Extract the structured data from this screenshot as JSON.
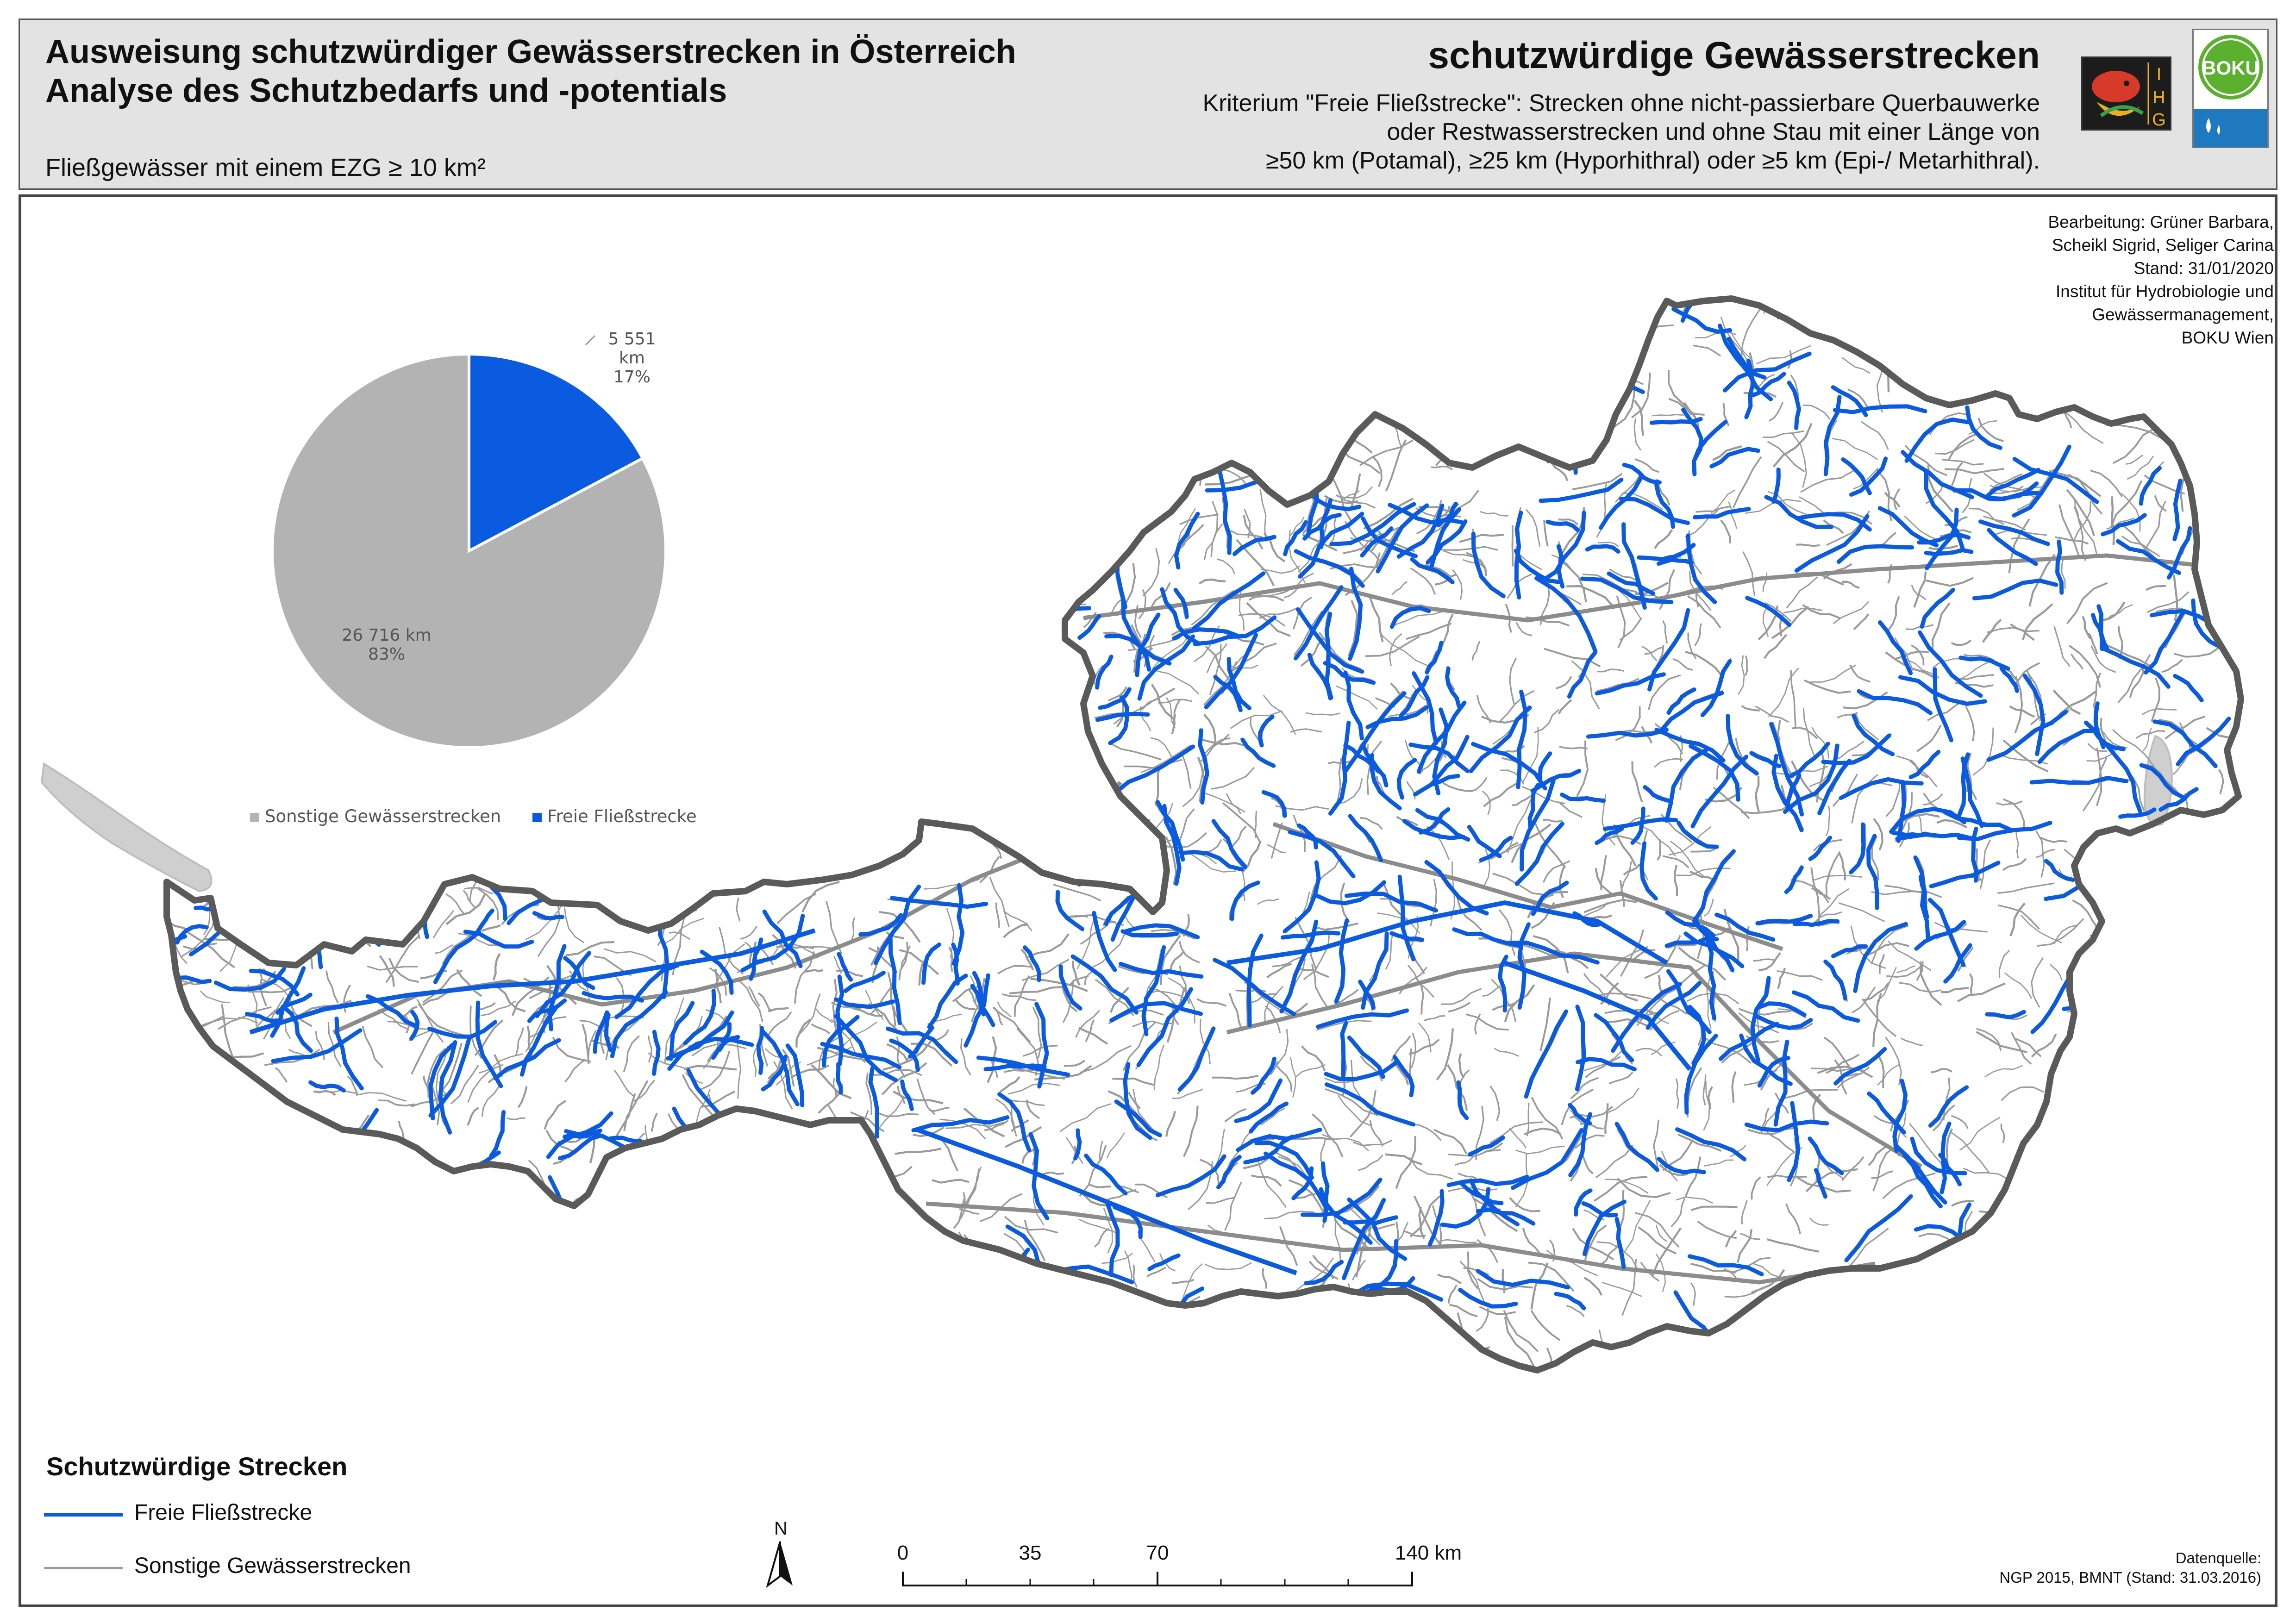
{
  "header": {
    "title_line1": "Ausweisung schutzwürdiger Gewässerstrecken in Österreich",
    "title_line2": "Analyse des Schutzbedarfs und -potentials",
    "subtitle": "Fließgewässer mit einem EZG ≥ 10 km²",
    "right_title": "schutzwürdige Gewässerstrecken",
    "criterion_line1": "Kriterium \"Freie Fließstrecke\": Strecken ohne nicht-passierbare Querbauwerke",
    "criterion_line2": "oder Restwasserstrecken und ohne Stau mit einer Länge von",
    "criterion_line3": "≥50 km (Potamal), ≥25 km (Hyporhithral) oder ≥5 km (Epi-/ Metarhithral).",
    "logo_ihg_text": "IHG",
    "logo_boku_text": "BOKU"
  },
  "credits": [
    "Bearbeitung: Grüner Barbara,",
    "Scheikl Sigrid, Seliger Carina",
    "Stand: 31/01/2020",
    "Institut für Hydrobiologie und",
    "Gewässermanagement,",
    "BOKU Wien"
  ],
  "pie": {
    "slices": [
      {
        "label": "Freie Fließstrecke",
        "km": "5 551 km",
        "percent": "17%",
        "value": 5551,
        "color": "#0a5be0"
      },
      {
        "label": "Sonstige Gewässerstrecken",
        "km": "26 716 km",
        "percent": "83%",
        "value": 26716,
        "color": "#b3b3b3"
      }
    ],
    "legend": [
      "Sonstige Gewässerstrecken",
      "Freie Fließstrecke"
    ]
  },
  "legend": {
    "title": "Schutzwürdige Strecken",
    "items": [
      {
        "label": "Freie Fließstrecke",
        "color": "#0a5be0"
      },
      {
        "label": "Sonstige Gewässerstrecken",
        "color": "#9a9a9a"
      }
    ]
  },
  "scale": {
    "ticks": [
      "0",
      "35",
      "70",
      "140 km"
    ]
  },
  "north": "N",
  "source": [
    "Datenquelle:",
    "NGP 2015, BMNT (Stand: 31.03.2016)"
  ],
  "colors": {
    "free_flow": "#0a5be0",
    "other": "#9a9a9a",
    "border": "#5a5a5a",
    "lake": "#cfcfcf"
  }
}
